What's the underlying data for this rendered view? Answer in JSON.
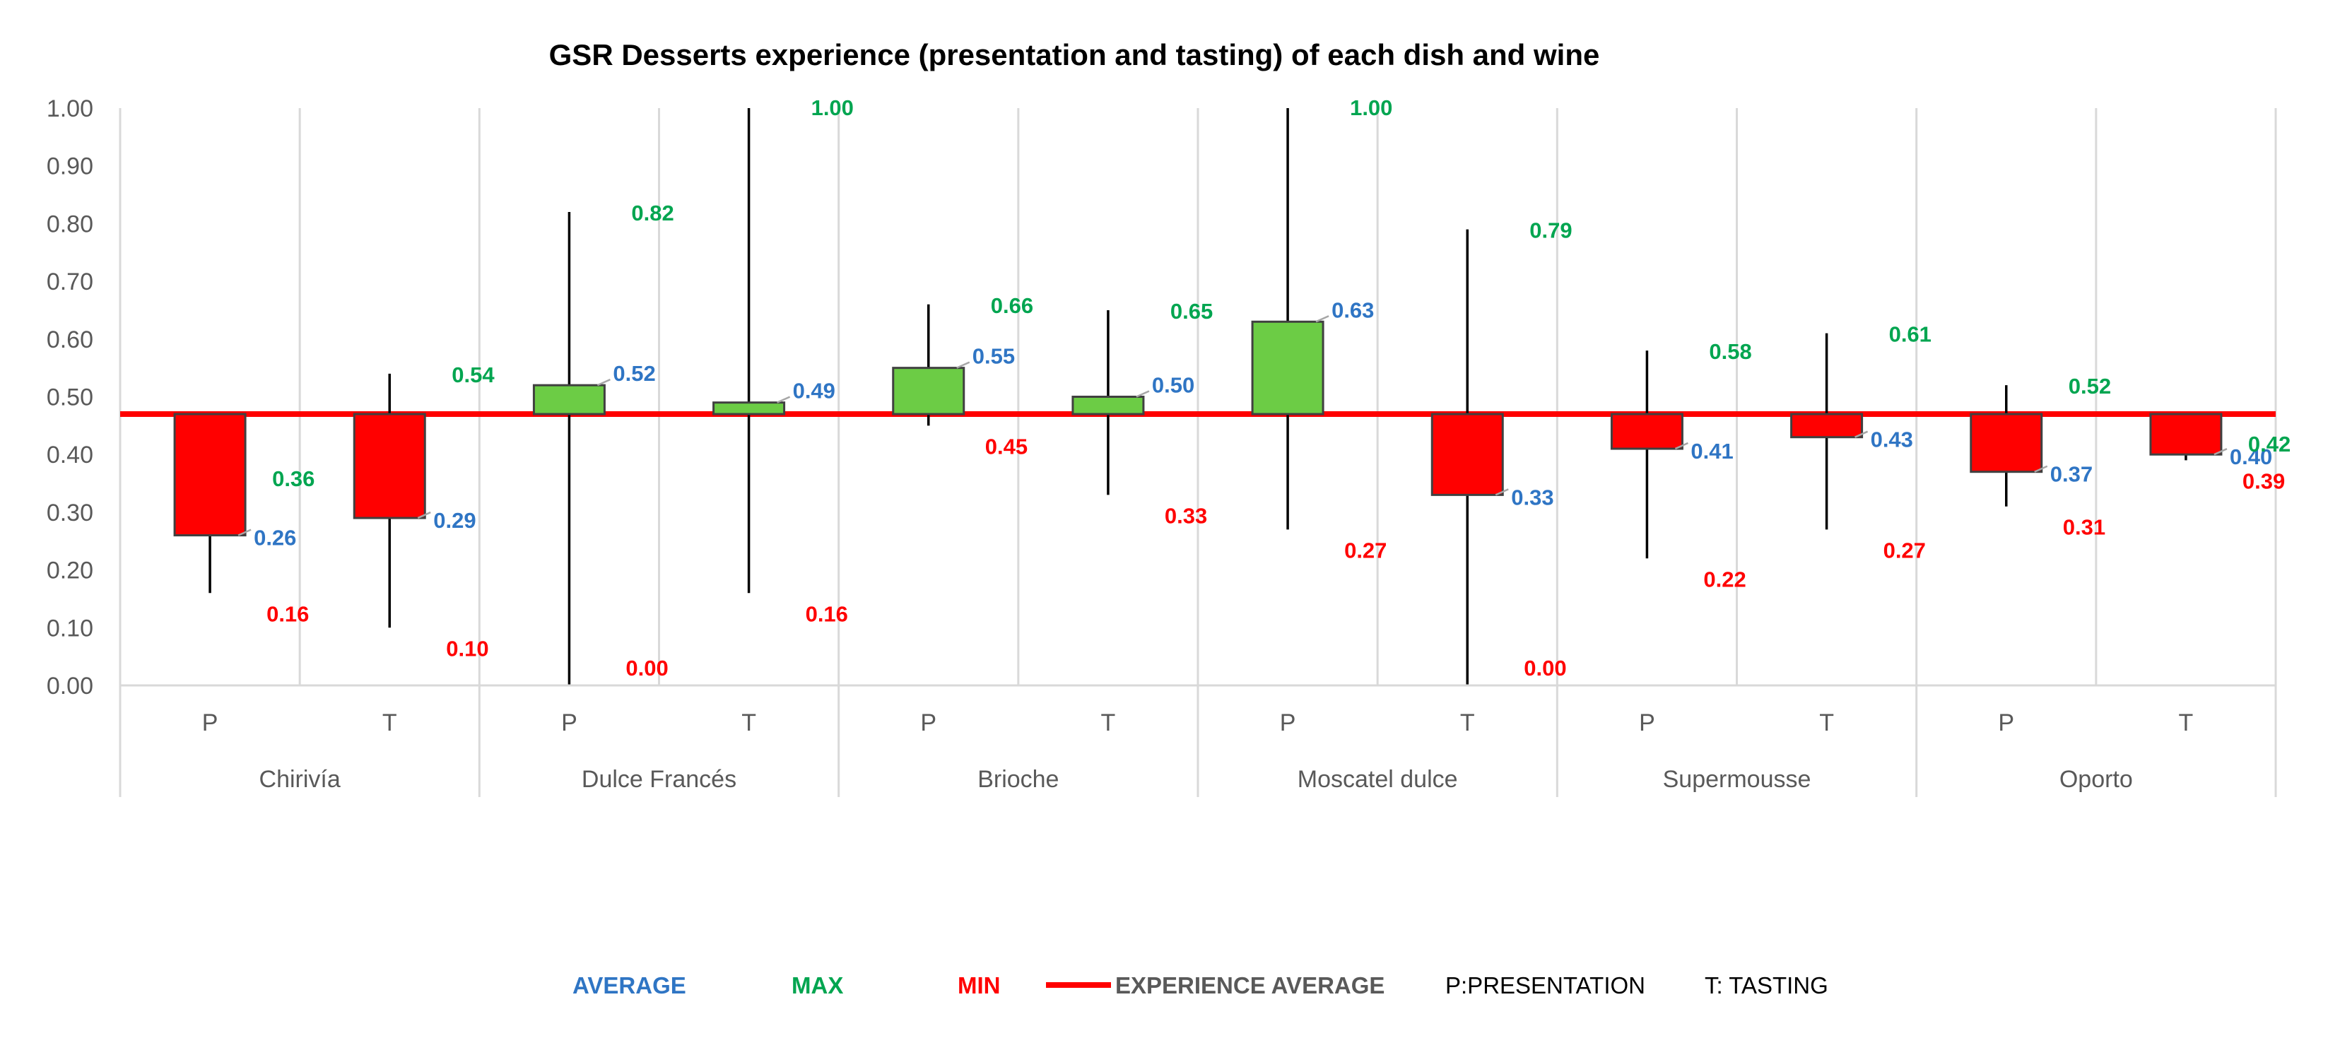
{
  "chart_data": {
    "type": "bar",
    "title": "GSR Desserts experience (presentation and tasting) of each dish and wine",
    "ylim": [
      0,
      1
    ],
    "yticks": [
      "0.00",
      "0.10",
      "0.20",
      "0.30",
      "0.40",
      "0.50",
      "0.60",
      "0.70",
      "0.80",
      "0.90",
      "1.00"
    ],
    "ytick_values": [
      0,
      0.1,
      0.2,
      0.3,
      0.4,
      0.5,
      0.6,
      0.7,
      0.8,
      0.9,
      1.0
    ],
    "experience_average": 0.47,
    "groups": [
      {
        "name": "Chirivía",
        "items": [
          {
            "sub": "P",
            "avg": 0.26,
            "max": 0.36,
            "min": 0.16,
            "avg_label": "0.26",
            "max_label": "0.36",
            "min_label": "0.16"
          },
          {
            "sub": "T",
            "avg": 0.29,
            "max": 0.54,
            "min": 0.1,
            "avg_label": "0.29",
            "max_label": "0.54",
            "min_label": "0.10"
          }
        ]
      },
      {
        "name": "Dulce Francés",
        "items": [
          {
            "sub": "P",
            "avg": 0.52,
            "max": 0.82,
            "min": 0.0,
            "avg_label": "0.52",
            "max_label": "0.82",
            "min_label": "0.00"
          },
          {
            "sub": "T",
            "avg": 0.49,
            "max": 1.0,
            "min": 0.16,
            "avg_label": "0.49",
            "max_label": "1.00",
            "min_label": "0.16"
          }
        ]
      },
      {
        "name": "Brioche",
        "items": [
          {
            "sub": "P",
            "avg": 0.55,
            "max": 0.66,
            "min": 0.45,
            "avg_label": "0.55",
            "max_label": "0.66",
            "min_label": "0.45"
          },
          {
            "sub": "T",
            "avg": 0.5,
            "max": 0.65,
            "min": 0.33,
            "avg_label": "0.50",
            "max_label": "0.65",
            "min_label": "0.33"
          }
        ]
      },
      {
        "name": "Moscatel dulce",
        "items": [
          {
            "sub": "P",
            "avg": 0.63,
            "max": 1.0,
            "min": 0.27,
            "avg_label": "0.63",
            "max_label": "1.00",
            "min_label": "0.27"
          },
          {
            "sub": "T",
            "avg": 0.33,
            "max": 0.79,
            "min": 0.0,
            "avg_label": "0.33",
            "max_label": "0.79",
            "min_label": "0.00"
          }
        ]
      },
      {
        "name": "Supermousse",
        "items": [
          {
            "sub": "P",
            "avg": 0.41,
            "max": 0.58,
            "min": 0.22,
            "avg_label": "0.41",
            "max_label": "0.58",
            "min_label": "0.22"
          },
          {
            "sub": "T",
            "avg": 0.43,
            "max": 0.61,
            "min": 0.27,
            "avg_label": "0.43",
            "max_label": "0.61",
            "min_label": "0.27"
          }
        ]
      },
      {
        "name": "Oporto",
        "items": [
          {
            "sub": "P",
            "avg": 0.37,
            "max": 0.52,
            "min": 0.31,
            "avg_label": "0.37",
            "max_label": "0.52",
            "min_label": "0.31"
          },
          {
            "sub": "T",
            "avg": 0.4,
            "max": 0.42,
            "min": 0.39,
            "avg_label": "0.40",
            "max_label": "0.42",
            "min_label": "0.39"
          }
        ]
      }
    ],
    "legend": {
      "average": "AVERAGE",
      "max": "MAX",
      "min": "MIN",
      "experience_average": "EXPERIENCE AVERAGE",
      "presentation": "P:PRESENTATION",
      "tasting": "T: TASTING"
    },
    "colors": {
      "up_fill": "#6ccc45",
      "down_fill": "#ff0000",
      "average_text": "#2f75c4",
      "max_text": "#00a550",
      "min_text": "#ff0000",
      "avg_line": "#ff0000",
      "whisker": "#000000",
      "grid": "#d9d9d9",
      "axis_text": "#595959"
    }
  }
}
